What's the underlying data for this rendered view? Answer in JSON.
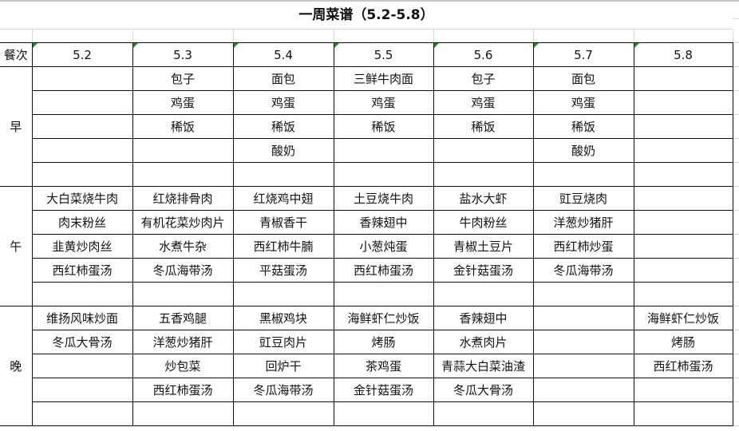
{
  "title": "一周菜谱（5.2-5.8）",
  "header": {
    "meal_label": "餐次",
    "days": [
      "5.2",
      "5.3",
      "5.4",
      "5.5",
      "5.6",
      "5.7",
      "5.8"
    ]
  },
  "meals": [
    {
      "name": "早",
      "rows": [
        [
          "",
          "包子",
          "面包",
          "三鲜牛肉面",
          "包子",
          "面包",
          ""
        ],
        [
          "",
          "鸡蛋",
          "鸡蛋",
          "鸡蛋",
          "鸡蛋",
          "鸡蛋",
          ""
        ],
        [
          "",
          "稀饭",
          "稀饭",
          "稀饭",
          "稀饭",
          "稀饭",
          ""
        ],
        [
          "",
          "",
          "酸奶",
          "",
          "",
          "酸奶",
          ""
        ],
        [
          "",
          "",
          "",
          "",
          "",
          "",
          ""
        ]
      ]
    },
    {
      "name": "午",
      "rows": [
        [
          "大白菜烧牛肉",
          "红烧排骨肉",
          "红烧鸡中翅",
          "土豆烧牛肉",
          "盐水大虾",
          "豇豆烧肉",
          ""
        ],
        [
          "肉末粉丝",
          "有机花菜炒肉片",
          "青椒香干",
          "香辣翅中",
          "牛肉粉丝",
          "洋葱炒猪肝",
          ""
        ],
        [
          "韭黄炒肉丝",
          "水煮牛杂",
          "西红柿牛腩",
          "小葱炖蛋",
          "青椒土豆片",
          "西红柿炒蛋",
          ""
        ],
        [
          "西红柿蛋汤",
          "冬瓜海带汤",
          "平菇蛋汤",
          "西红柿蛋汤",
          "金针菇蛋汤",
          "冬瓜海带汤",
          ""
        ],
        [
          "",
          "",
          "",
          "",
          "",
          "",
          ""
        ]
      ]
    },
    {
      "name": "晚",
      "rows": [
        [
          "维扬风味炒面",
          "五香鸡腿",
          "黑椒鸡块",
          "海鲜虾仁炒饭",
          "香辣翅中",
          "",
          "海鲜虾仁炒饭"
        ],
        [
          "冬瓜大骨汤",
          "洋葱炒猪肝",
          "豇豆肉片",
          "烤肠",
          "水煮肉片",
          "",
          "烤肠"
        ],
        [
          "",
          "炒包菜",
          "回炉干",
          "茶鸡蛋",
          "青蒜大白菜油渣",
          "",
          "西红柿蛋汤"
        ],
        [
          "",
          "西红柿蛋汤",
          "冬瓜海带汤",
          "金针菇蛋汤",
          "冬瓜大骨汤",
          "",
          ""
        ],
        [
          "",
          "",
          "",
          "",
          "",
          "",
          ""
        ]
      ]
    }
  ]
}
